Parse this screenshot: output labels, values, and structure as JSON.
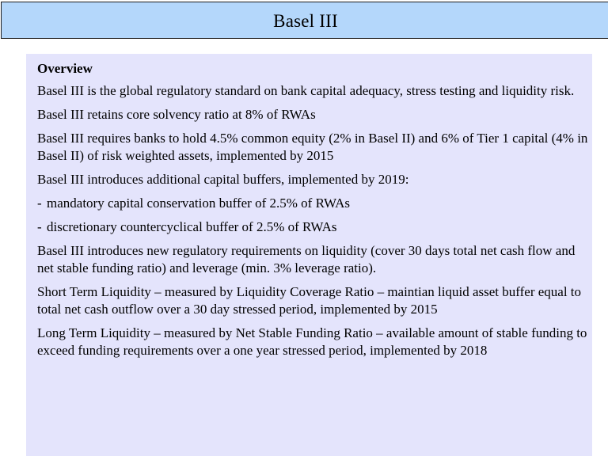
{
  "slide": {
    "title": "Basel III"
  },
  "content": {
    "heading": "Overview",
    "paragraphs": [
      "Basel III is the global regulatory standard on bank capital adequacy, stress testing and liquidity risk.",
      "Basel III retains core solvency ratio at 8% of RWAs",
      "Basel III requires banks to hold 4.5% common equity (2% in Basel II) and 6% of Tier 1 capital (4% in Basel II) of risk weighted assets, implemented by 2015",
      "Basel III introduces additional capital buffers, implemented by 2019:"
    ],
    "bullets": [
      {
        "marker": "-",
        "text": "mandatory capital conservation buffer of 2.5% of RWAs"
      },
      {
        "marker": "-",
        "text": "discretionary countercyclical buffer of 2.5% of RWAs"
      }
    ],
    "paragraphs_after": [
      "Basel III introduces new regulatory requirements on liquidity (cover 30 days total net cash flow and net stable funding ratio) and leverage (min. 3% leverage ratio).",
      "Short Term Liquidity – measured by Liquidity Coverage Ratio – maintian liquid asset buffer equal to total net cash outflow over a 30 day stressed period, implemented by 2015",
      "Long Term Liquidity – measured by Net Stable Funding Ratio – available amount of stable funding to exceed funding requirements over a one year stressed period, implemented by 2018"
    ]
  }
}
